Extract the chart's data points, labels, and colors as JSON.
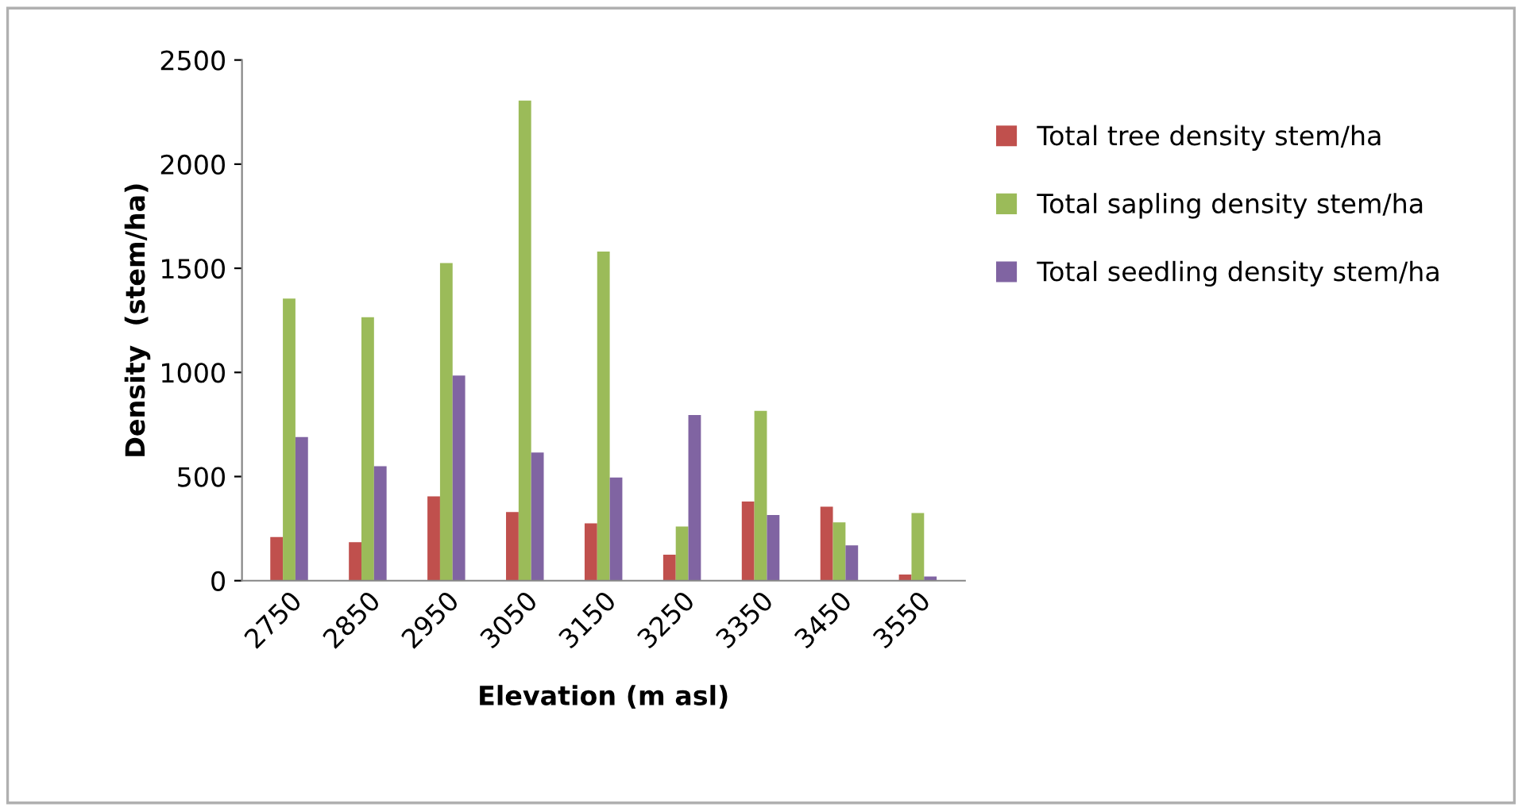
{
  "chart_data": {
    "type": "bar",
    "xlabel": "Elevation (m asl)",
    "ylabel": "Density  (stem/ha)",
    "categories": [
      "2750",
      "2850",
      "2950",
      "3050",
      "3150",
      "3250",
      "3350",
      "3450",
      "3550"
    ],
    "series": [
      {
        "name": "Total tree density stem/ha",
        "color": "#c0504d",
        "values": [
          210,
          185,
          405,
          330,
          275,
          125,
          380,
          355,
          30
        ]
      },
      {
        "name": "Total sapling density stem/ha",
        "color": "#9bbb59",
        "values": [
          1355,
          1265,
          1525,
          2305,
          1580,
          260,
          815,
          280,
          325
        ]
      },
      {
        "name": "Total seedling density stem/ha",
        "color": "#8064a2",
        "values": [
          690,
          550,
          985,
          615,
          495,
          795,
          315,
          170,
          20
        ]
      }
    ],
    "ylim": [
      0,
      2500
    ],
    "yticks": [
      0,
      500,
      1000,
      1500,
      2000,
      2500
    ],
    "grid": false,
    "legend": "right"
  }
}
